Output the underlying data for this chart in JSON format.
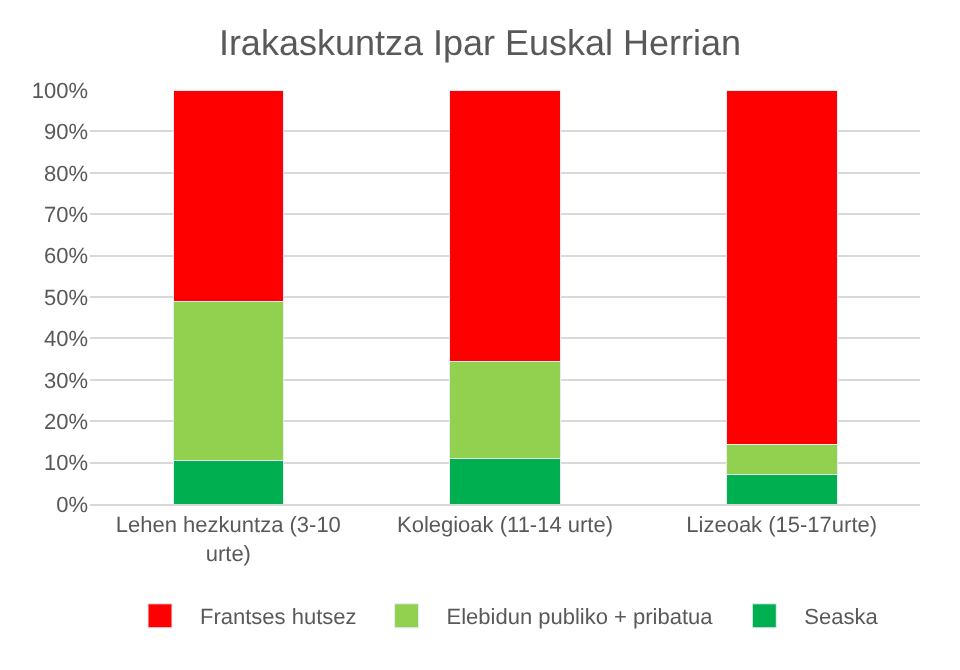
{
  "chart_data": {
    "type": "bar",
    "title": "Irakaskuntza Ipar Euskal Herrian",
    "categories": [
      "Lehen hezkuntza (3-10 urte)",
      "Kolegioak (11-14 urte)",
      "Lizeoak (15-17urte)"
    ],
    "series": [
      {
        "name": "Seaska",
        "color": "#00b050",
        "values": [
          10.4,
          11.0,
          7.1
        ]
      },
      {
        "name": "Elebidun publiko + pribatua",
        "color": "#92d050",
        "values": [
          38.4,
          23.4,
          7.2
        ]
      },
      {
        "name": "Frantses hutsez",
        "color": "#ff0000",
        "values": [
          51.2,
          65.6,
          85.7
        ]
      }
    ],
    "stacked": true,
    "ylim": [
      0,
      100
    ],
    "yticks": [
      {
        "value": 0,
        "label": "0%"
      },
      {
        "value": 10,
        "label": "10%"
      },
      {
        "value": 20,
        "label": "20%"
      },
      {
        "value": 30,
        "label": "30%"
      },
      {
        "value": 40,
        "label": "40%"
      },
      {
        "value": 50,
        "label": "50%"
      },
      {
        "value": 60,
        "label": "60%"
      },
      {
        "value": 70,
        "label": "70%"
      },
      {
        "value": 80,
        "label": "80%"
      },
      {
        "value": 90,
        "label": "90%"
      },
      {
        "value": 100,
        "label": "100%"
      }
    ],
    "grid": "y",
    "legend": "bottom"
  }
}
